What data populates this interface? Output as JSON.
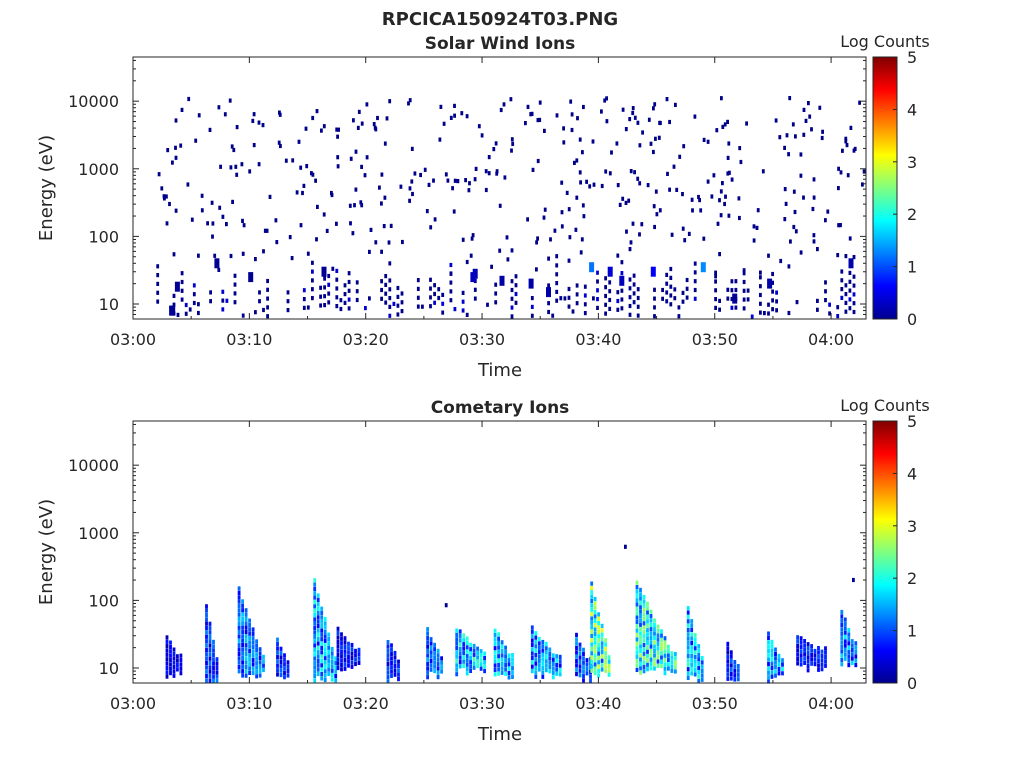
{
  "figure_title": "RPCICA150924T03.PNG",
  "chart_data": [
    {
      "type": "heatmap",
      "title": "Solar Wind Ions",
      "xlabel": "Time",
      "ylabel": "Energy (eV)",
      "x_range": [
        "03:00",
        "04:03"
      ],
      "x_ticks": [
        "03:00",
        "03:10",
        "03:20",
        "03:30",
        "03:40",
        "03:50",
        "04:00"
      ],
      "y_scale": "log",
      "y_range": [
        6,
        45000
      ],
      "y_ticks": [
        "10",
        "100",
        "1000",
        "10000"
      ],
      "colorbar": {
        "label": "Log Counts",
        "range": [
          0,
          5
        ],
        "ticks": [
          "0",
          "1",
          "2",
          "3",
          "4",
          "5"
        ],
        "colormap": "jet"
      },
      "grid": false,
      "description_of_cells": "Sparse single-count pixels (log count ~0) scattered over 100-10000 eV; denser low-energy bands (10-50 eV) with values up to ~1.3 near 03:40 and 03:45",
      "cells": [
        {
          "t": 3.1,
          "e": 8,
          "v": 0.1
        },
        {
          "t": 3.2,
          "e": 8,
          "v": 0.1
        },
        {
          "t": 3.6,
          "e": 18,
          "v": 0.1
        },
        {
          "t": 7.0,
          "e": 40,
          "v": 0.1
        },
        {
          "t": 9.9,
          "e": 25,
          "v": 0.1
        },
        {
          "t": 16.2,
          "e": 30,
          "v": 0.1
        },
        {
          "t": 29.0,
          "e": 25,
          "v": 0.3
        },
        {
          "t": 29.2,
          "e": 28,
          "v": 0.3
        },
        {
          "t": 31.5,
          "e": 22,
          "v": 0.2
        },
        {
          "t": 34.0,
          "e": 20,
          "v": 0.2
        },
        {
          "t": 35.5,
          "e": 15,
          "v": 0.2
        },
        {
          "t": 39.2,
          "e": 35,
          "v": 1.2
        },
        {
          "t": 40.8,
          "e": 30,
          "v": 0.4
        },
        {
          "t": 41.8,
          "e": 22,
          "v": 0.3
        },
        {
          "t": 44.5,
          "e": 30,
          "v": 0.6
        },
        {
          "t": 48.8,
          "e": 35,
          "v": 1.3
        },
        {
          "t": 51.5,
          "e": 12,
          "v": 0.1
        },
        {
          "t": 54.5,
          "e": 20,
          "v": 0.2
        },
        {
          "t": 61.5,
          "e": 40,
          "v": 0.2
        }
      ]
    },
    {
      "type": "heatmap",
      "title": "Cometary Ions",
      "xlabel": "Time",
      "ylabel": "Energy (eV)",
      "x_range": [
        "03:00",
        "04:03"
      ],
      "x_ticks": [
        "03:00",
        "03:10",
        "03:20",
        "03:30",
        "03:40",
        "03:50",
        "04:00"
      ],
      "y_scale": "log",
      "y_range": [
        6,
        45000
      ],
      "y_ticks": [
        "10",
        "100",
        "1000",
        "10000"
      ],
      "colorbar": {
        "label": "Log Counts",
        "range": [
          0,
          5
        ],
        "ticks": [
          "0",
          "1",
          "2",
          "3",
          "4",
          "5"
        ],
        "colormap": "jet"
      },
      "grid": false,
      "description_of_cells": "Bursts of cometary ions mostly between 8 and 40 eV, with dispersed tails rising to ~100-200 eV near 03:07, 03:10, 03:16, 03:40 and 03:44; peak log counts ~2.5",
      "bursts": [
        {
          "t0": 2.8,
          "t1": 4.0,
          "e_lo": 8,
          "e_hi": 32,
          "v": 0.6
        },
        {
          "t0": 6.2,
          "t1": 7.3,
          "e_lo": 7,
          "e_hi": 85,
          "v": 1.0
        },
        {
          "t0": 9.0,
          "t1": 11.2,
          "e_lo": 8,
          "e_hi": 150,
          "v": 1.3
        },
        {
          "t0": 12.3,
          "t1": 13.3,
          "e_lo": 7,
          "e_hi": 28,
          "v": 1.0
        },
        {
          "t0": 15.5,
          "t1": 17.5,
          "e_lo": 7,
          "e_hi": 200,
          "v": 1.6
        },
        {
          "t0": 17.5,
          "t1": 19.5,
          "e_lo": 10,
          "e_hi": 40,
          "v": 0.8
        },
        {
          "t0": 21.8,
          "t1": 23.0,
          "e_lo": 7,
          "e_hi": 28,
          "v": 0.9
        },
        {
          "t0": 25.2,
          "t1": 26.6,
          "e_lo": 8,
          "e_hi": 38,
          "v": 1.2
        },
        {
          "t0": 27.7,
          "t1": 30.4,
          "e_lo": 9,
          "e_hi": 40,
          "v": 1.7
        },
        {
          "t0": 31.0,
          "t1": 32.6,
          "e_lo": 8,
          "e_hi": 40,
          "v": 1.6
        },
        {
          "t0": 34.2,
          "t1": 36.8,
          "e_lo": 8,
          "e_hi": 40,
          "v": 1.5
        },
        {
          "t0": 38.0,
          "t1": 39.3,
          "e_lo": 7,
          "e_hi": 32,
          "v": 1.1
        },
        {
          "t0": 39.3,
          "t1": 41.0,
          "e_lo": 8,
          "e_hi": 190,
          "v": 2.3
        },
        {
          "t0": 43.2,
          "t1": 46.5,
          "e_lo": 9,
          "e_hi": 190,
          "v": 2.1
        },
        {
          "t0": 47.6,
          "t1": 49.0,
          "e_lo": 7,
          "e_hi": 80,
          "v": 1.7
        },
        {
          "t0": 51.0,
          "t1": 52.0,
          "e_lo": 6,
          "e_hi": 25,
          "v": 0.9
        },
        {
          "t0": 54.5,
          "t1": 55.8,
          "e_lo": 7,
          "e_hi": 35,
          "v": 1.5
        },
        {
          "t0": 57.0,
          "t1": 59.6,
          "e_lo": 10,
          "e_hi": 30,
          "v": 0.8
        },
        {
          "t0": 60.8,
          "t1": 62.0,
          "e_lo": 12,
          "e_hi": 75,
          "v": 1.4
        }
      ],
      "isolated_points": [
        {
          "t": 42.2,
          "e": 620,
          "v": 0.1
        },
        {
          "t": 61.8,
          "e": 200,
          "v": 0.1
        },
        {
          "t": 26.8,
          "e": 85,
          "v": 0.1
        }
      ]
    }
  ]
}
